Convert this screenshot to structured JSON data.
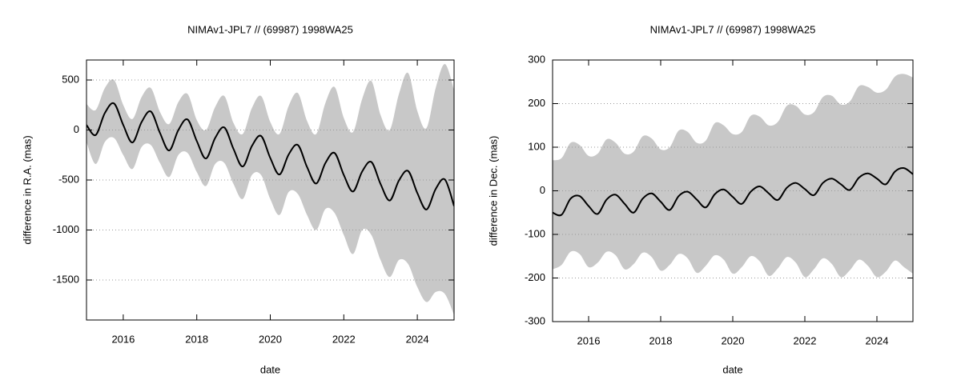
{
  "chart_data": [
    {
      "type": "line",
      "title": "NIMAv1-JPL7 // (69987) 1998WA25",
      "xlabel": "date",
      "ylabel": "difference in R.A. (mas)",
      "xlim": [
        2015,
        2025
      ],
      "xticks": [
        2016,
        2018,
        2020,
        2022,
        2024
      ],
      "ylim": [
        -1900,
        700
      ],
      "yticks": [
        -1500,
        -1000,
        -500,
        0,
        500
      ],
      "grid": true,
      "x": [
        2015,
        2015.25,
        2015.5,
        2015.75,
        2016,
        2016.25,
        2016.5,
        2016.75,
        2017,
        2017.25,
        2017.5,
        2017.75,
        2018,
        2018.25,
        2018.5,
        2018.75,
        2019,
        2019.25,
        2019.5,
        2019.75,
        2020,
        2020.25,
        2020.5,
        2020.75,
        2021,
        2021.25,
        2021.5,
        2021.75,
        2022,
        2022.25,
        2022.5,
        2022.75,
        2023,
        2023.25,
        2023.5,
        2023.75,
        2024,
        2024.25,
        2024.5,
        2024.75,
        2025
      ],
      "series": [
        {
          "color": "#000000",
          "values": [
            50,
            -50,
            170,
            265,
            50,
            -125,
            80,
            185,
            -30,
            -205,
            0,
            105,
            -110,
            -285,
            -80,
            25,
            -190,
            -365,
            -160,
            -60,
            -280,
            -445,
            -245,
            -150,
            -370,
            -535,
            -330,
            -230,
            -450,
            -615,
            -415,
            -320,
            -540,
            -705,
            -505,
            -410,
            -630,
            -795,
            -590,
            -495,
            -760
          ]
        }
      ],
      "band": {
        "color": "#c8c8c8",
        "upper": [
          260,
          200,
          420,
          500,
          250,
          110,
          330,
          420,
          180,
          60,
          280,
          360,
          100,
          0,
          230,
          340,
          70,
          -40,
          220,
          340,
          80,
          -40,
          240,
          370,
          90,
          -40,
          270,
          430,
          120,
          -20,
          310,
          490,
          150,
          0,
          360,
          570,
          190,
          20,
          420,
          660,
          400
        ],
        "lower": [
          -120,
          -340,
          -120,
          -80,
          -250,
          -390,
          -170,
          -150,
          -330,
          -470,
          -250,
          -230,
          -420,
          -560,
          -340,
          -330,
          -540,
          -690,
          -450,
          -450,
          -690,
          -850,
          -620,
          -640,
          -850,
          -1000,
          -790,
          -830,
          -1050,
          -1240,
          -1000,
          -1050,
          -1300,
          -1470,
          -1300,
          -1340,
          -1570,
          -1720,
          -1620,
          -1640,
          -1850
        ]
      }
    },
    {
      "type": "line",
      "title": "NIMAv1-JPL7 // (69987) 1998WA25",
      "xlabel": "date",
      "ylabel": "difference in Dec. (mas)",
      "xlim": [
        2015,
        2025
      ],
      "xticks": [
        2016,
        2018,
        2020,
        2022,
        2024
      ],
      "ylim": [
        -300,
        300
      ],
      "yticks": [
        -300,
        -200,
        -100,
        0,
        100,
        200,
        300
      ],
      "grid": true,
      "x": [
        2015,
        2015.25,
        2015.5,
        2015.75,
        2016,
        2016.25,
        2016.5,
        2016.75,
        2017,
        2017.25,
        2017.5,
        2017.75,
        2018,
        2018.25,
        2018.5,
        2018.75,
        2019,
        2019.25,
        2019.5,
        2019.75,
        2020,
        2020.25,
        2020.5,
        2020.75,
        2021,
        2021.25,
        2021.5,
        2021.75,
        2022,
        2022.25,
        2022.5,
        2022.75,
        2023,
        2023.25,
        2023.5,
        2023.75,
        2024,
        2024.25,
        2024.5,
        2024.75,
        2025
      ],
      "series": [
        {
          "color": "#000000",
          "values": [
            -50,
            -55,
            -18,
            -12,
            -35,
            -53,
            -20,
            -9,
            -30,
            -50,
            -18,
            -6,
            -25,
            -44,
            -12,
            -2,
            -20,
            -38,
            -8,
            3,
            -14,
            -30,
            -2,
            10,
            -6,
            -21,
            7,
            18,
            4,
            -10,
            18,
            28,
            15,
            2,
            30,
            40,
            28,
            15,
            44,
            52,
            38
          ]
        }
      ],
      "band": {
        "color": "#c8c8c8",
        "upper": [
          70,
          75,
          110,
          105,
          80,
          85,
          118,
          110,
          85,
          90,
          125,
          120,
          95,
          100,
          138,
          135,
          110,
          115,
          155,
          150,
          130,
          135,
          172,
          170,
          150,
          158,
          195,
          195,
          175,
          180,
          215,
          218,
          198,
          205,
          240,
          238,
          225,
          232,
          262,
          268,
          260
        ],
        "lower": [
          -180,
          -170,
          -140,
          -145,
          -175,
          -165,
          -140,
          -148,
          -180,
          -168,
          -142,
          -152,
          -183,
          -170,
          -145,
          -155,
          -188,
          -172,
          -148,
          -158,
          -190,
          -175,
          -150,
          -162,
          -195,
          -178,
          -152,
          -165,
          -198,
          -180,
          -155,
          -168,
          -198,
          -182,
          -158,
          -172,
          -198,
          -185,
          -160,
          -175,
          -190
        ]
      }
    }
  ]
}
